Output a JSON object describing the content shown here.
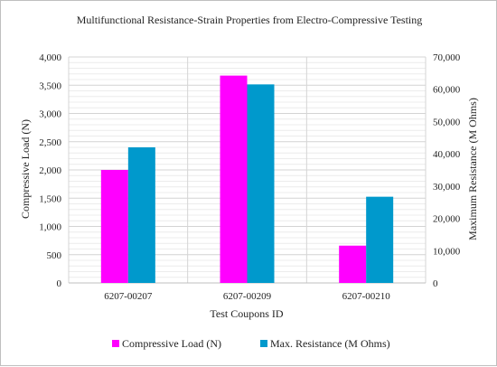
{
  "chart_data": {
    "type": "bar",
    "title": "Multifunctional Resistance-Strain Properties from Electro-Compressive Testing",
    "xlabel": "Test Coupons ID",
    "ylabel": "Compressive Load (N)",
    "y2label": "Maximum Resistance (M Ohms)",
    "categories": [
      "6207-00207",
      "6207-00209",
      "6207-00210"
    ],
    "ylim": [
      0,
      4000
    ],
    "y2lim": [
      0,
      70000
    ],
    "yticks": [
      "0",
      "500",
      "1,000",
      "1,500",
      "2,000",
      "2,500",
      "3,000",
      "3,500",
      "4,000"
    ],
    "y2ticks": [
      "0",
      "10,000",
      "20,000",
      "30,000",
      "40,000",
      "50,000",
      "60,000",
      "70,000"
    ],
    "grid": true,
    "legend_position": "bottom",
    "series": [
      {
        "name": "Compressive Load (N)",
        "axis": "left",
        "color": "#ff00ff",
        "values": [
          2000,
          3670,
          660
        ]
      },
      {
        "name": "Max. Resistance (M Ohms)",
        "axis": "right",
        "color": "#0099cc",
        "values": [
          42000,
          61500,
          26700
        ]
      }
    ]
  }
}
